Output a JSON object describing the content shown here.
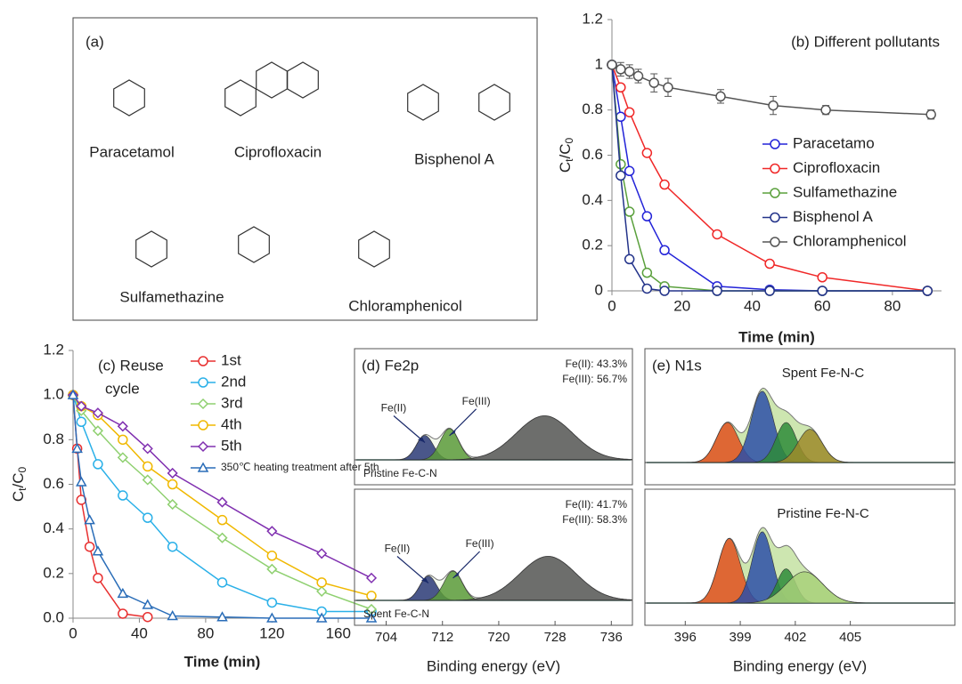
{
  "chart_data": [
    {
      "type": "structures",
      "title": "(a)",
      "labels": [
        "Paracetamol",
        "Ciprofloxacin",
        "Bisphenol A",
        "Sulfamethazine",
        "Chloramphenicol"
      ]
    },
    {
      "type": "line",
      "title": "(b) Different pollutants",
      "xlabel": "Time (min)",
      "ylabel": [
        "C",
        "t",
        "/C",
        "0"
      ],
      "xlim": [
        0,
        94
      ],
      "xticks": [
        0,
        20,
        40,
        60,
        80
      ],
      "ylim": [
        0,
        1.2
      ],
      "yticks": [
        0,
        0.2,
        0.4,
        0.6,
        0.8,
        1,
        1.2
      ],
      "series": [
        {
          "name": "Paracetamo",
          "color": "#2323d8",
          "marker": "circle",
          "x": [
            0,
            2.5,
            5,
            10,
            15,
            30,
            45,
            60,
            90
          ],
          "values": [
            1,
            0.77,
            0.53,
            0.33,
            0.18,
            0.02,
            0.005,
            0,
            0
          ]
        },
        {
          "name": "Ciprofloxacin",
          "color": "#f02828",
          "marker": "circle",
          "x": [
            0,
            2.5,
            5,
            10,
            15,
            30,
            45,
            60,
            90
          ],
          "values": [
            1,
            0.9,
            0.79,
            0.61,
            0.47,
            0.25,
            0.12,
            0.06,
            0
          ]
        },
        {
          "name": "Sulfamethazine",
          "color": "#5aa03c",
          "marker": "circle",
          "x": [
            0,
            2.5,
            5,
            10,
            15,
            30,
            45,
            60,
            90
          ],
          "values": [
            1,
            0.56,
            0.35,
            0.08,
            0.02,
            0,
            0,
            0,
            0
          ]
        },
        {
          "name": "Bisphenol A",
          "color": "#23338a",
          "marker": "circle",
          "x": [
            0,
            2.5,
            5,
            10,
            15,
            30,
            45,
            60,
            90
          ],
          "values": [
            1,
            0.51,
            0.14,
            0.01,
            0,
            0,
            0,
            0,
            0
          ]
        },
        {
          "name": "Chloramphenicol",
          "color": "#555555",
          "marker": "circle",
          "x": [
            0,
            2.5,
            5,
            7.5,
            12,
            16,
            31,
            46,
            61,
            91
          ],
          "values": [
            1,
            0.98,
            0.97,
            0.95,
            0.92,
            0.9,
            0.86,
            0.82,
            0.8,
            0.78
          ],
          "errors": [
            0,
            0.03,
            0.03,
            0.03,
            0.04,
            0.04,
            0.03,
            0.04,
            0.02,
            0.02
          ]
        }
      ]
    },
    {
      "type": "line",
      "title": [
        "(c) Reuse",
        "cycle"
      ],
      "xlabel": "Time (min)",
      "ylabel": [
        "C",
        "t",
        "/C",
        "0"
      ],
      "xlim": [
        0,
        180
      ],
      "xticks": [
        0,
        40,
        80,
        120,
        160
      ],
      "ylim": [
        0,
        1.2
      ],
      "yticks": [
        {
          "value": 0,
          "label": "0.0"
        },
        {
          "value": 0.2,
          "label": "0.2"
        },
        {
          "value": 0.4,
          "label": "0.4"
        },
        {
          "value": 0.6,
          "label": "0.6"
        },
        {
          "value": 0.8,
          "label": "0.8"
        },
        {
          "value": 1,
          "label": "1.0"
        },
        {
          "value": 1.2,
          "label": "1.2"
        }
      ],
      "series": [
        {
          "name": "1st",
          "color": "#e83030",
          "marker": "circle",
          "x": [
            0,
            2.5,
            5,
            10,
            15,
            30,
            45
          ],
          "values": [
            1,
            0.76,
            0.53,
            0.32,
            0.18,
            0.02,
            0.005
          ]
        },
        {
          "name": "2nd",
          "color": "#2ab0e8",
          "marker": "circle",
          "x": [
            0,
            5,
            15,
            30,
            45,
            60,
            90,
            120,
            150,
            180
          ],
          "values": [
            1,
            0.88,
            0.69,
            0.55,
            0.45,
            0.32,
            0.16,
            0.07,
            0.03,
            0.03
          ]
        },
        {
          "name": "3rd",
          "color": "#8fd070",
          "marker": "diamond",
          "x": [
            0,
            5,
            15,
            30,
            45,
            60,
            90,
            120,
            150,
            180
          ],
          "values": [
            1,
            0.93,
            0.84,
            0.72,
            0.62,
            0.51,
            0.36,
            0.22,
            0.12,
            0.04
          ]
        },
        {
          "name": "4th",
          "color": "#f0b800",
          "marker": "circle",
          "x": [
            0,
            5,
            15,
            30,
            45,
            60,
            90,
            120,
            150,
            180
          ],
          "values": [
            1,
            0.95,
            0.91,
            0.8,
            0.68,
            0.6,
            0.44,
            0.28,
            0.16,
            0.1
          ]
        },
        {
          "name": "5th",
          "color": "#8030b0",
          "marker": "diamond",
          "x": [
            0,
            5,
            15,
            30,
            45,
            60,
            90,
            120,
            150,
            180
          ],
          "values": [
            1,
            0.95,
            0.92,
            0.86,
            0.76,
            0.65,
            0.52,
            0.39,
            0.29,
            0.18
          ]
        },
        {
          "name": "350℃ heating treatment after 5th",
          "color": "#2a6db8",
          "marker": "triangle",
          "x": [
            0,
            2.5,
            5,
            10,
            15,
            30,
            45,
            60,
            90,
            120,
            150,
            180
          ],
          "values": [
            1,
            0.76,
            0.61,
            0.44,
            0.3,
            0.11,
            0.06,
            0.01,
            0.005,
            0,
            0,
            0
          ]
        }
      ]
    },
    {
      "type": "spectrum",
      "title": "(d) Fe2p",
      "xlabel": "Binding energy (eV)",
      "xlim": [
        699.5,
        739
      ],
      "xticks": [
        704,
        712,
        720,
        728,
        736
      ],
      "panels": [
        {
          "label": "Pristine Fe-C-N",
          "annotations": [
            "Fe(II): 43.3%",
            "Fe(III): 56.7%"
          ],
          "peak_labels": [
            "Fe(II)",
            "Fe(III)"
          ],
          "peaks": [
            {
              "center": 709.5,
              "height": 0.25,
              "width": 1.2,
              "color": "#2b3a78"
            },
            {
              "center": 713,
              "height": 0.32,
              "width": 1.3,
              "color": "#5a9a3a"
            },
            {
              "center": 726.5,
              "height": 0.45,
              "width": 4,
              "color": "#555555"
            }
          ]
        },
        {
          "label": "Spent Fe-C-N",
          "annotations": [
            "Fe(II): 41.7%",
            "Fe(III): 58.3%"
          ],
          "peak_labels": [
            "Fe(II)",
            "Fe(III)"
          ],
          "peaks": [
            {
              "center": 710,
              "height": 0.25,
              "width": 1.2,
              "color": "#2b3a78"
            },
            {
              "center": 713.5,
              "height": 0.3,
              "width": 1.3,
              "color": "#5a9a3a"
            },
            {
              "center": 727,
              "height": 0.45,
              "width": 4,
              "color": "#555555"
            }
          ]
        }
      ]
    },
    {
      "type": "spectrum",
      "title": "(e) N1s",
      "xlabel": "Binding energy (eV)",
      "xlim": [
        393.8,
        410.7
      ],
      "xticks": [
        396,
        399,
        402,
        405
      ],
      "panels": [
        {
          "label": "Spent Fe-N-C",
          "peaks": [
            {
              "center": 398.3,
              "height": 0.41,
              "width": 0.6,
              "color": "#e0501e"
            },
            {
              "center": 400.2,
              "height": 0.73,
              "width": 0.6,
              "color": "#2d4fa8"
            },
            {
              "center": 401.5,
              "height": 0.41,
              "width": 0.55,
              "color": "#2e8b3a"
            },
            {
              "center": 402.8,
              "height": 0.34,
              "width": 0.65,
              "color": "#9c8a2a"
            }
          ]
        },
        {
          "label": "Pristine Fe-N-C",
          "peaks": [
            {
              "center": 398.4,
              "height": 0.66,
              "width": 0.6,
              "color": "#e0501e"
            },
            {
              "center": 400.2,
              "height": 0.73,
              "width": 0.55,
              "color": "#2d4fa8"
            },
            {
              "center": 401.5,
              "height": 0.35,
              "width": 0.5,
              "color": "#2e8b3a"
            },
            {
              "center": 402.5,
              "height": 0.32,
              "width": 1,
              "color": "#a8d07a"
            }
          ]
        }
      ]
    }
  ]
}
